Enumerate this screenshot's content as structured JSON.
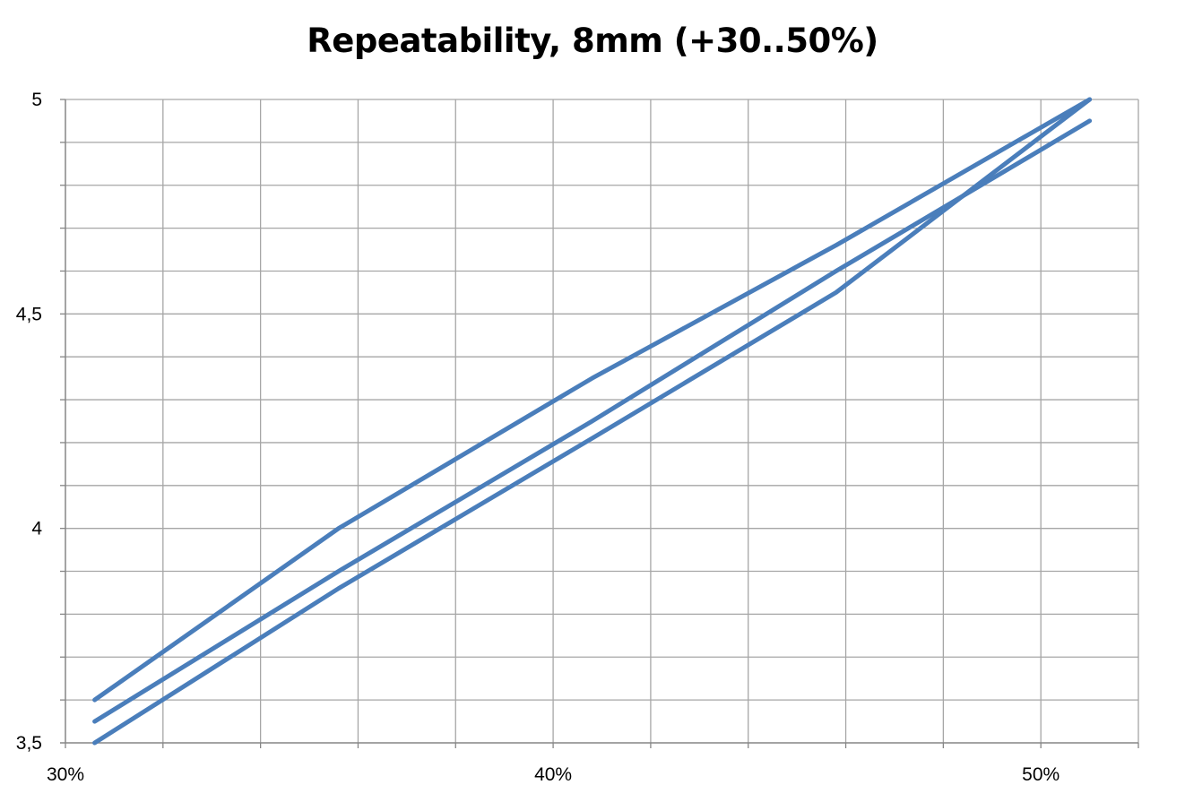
{
  "chart_data": {
    "type": "line",
    "title": "Repeatability, 8mm (+30..50%)",
    "xlabel": "",
    "ylabel": "",
    "xlim": [
      30,
      52
    ],
    "ylim": [
      3.5,
      5
    ],
    "x_ticks": [
      30,
      40,
      50
    ],
    "x_tick_labels": [
      "30%",
      "40%",
      "50%"
    ],
    "x_minor_step": 2,
    "y_ticks": [
      3.5,
      4,
      4.5,
      5
    ],
    "y_tick_labels": [
      "3,5",
      "4",
      "4,5",
      "5"
    ],
    "y_minor_step": 0.1,
    "grid": true,
    "line_color": "#4a7ebb",
    "series": [
      {
        "x": [
          30.6,
          35.6,
          40.8,
          45.8,
          51.0
        ],
        "y": [
          3.5,
          3.86,
          4.21,
          4.55,
          5.0
        ]
      },
      {
        "x": [
          51.0,
          45.8,
          40.8,
          35.6,
          30.6
        ],
        "y": [
          5.0,
          4.66,
          4.35,
          4.0,
          3.6
        ]
      },
      {
        "x": [
          30.6,
          35.6,
          40.8,
          45.8,
          51.0
        ],
        "y": [
          3.55,
          3.9,
          4.25,
          4.6,
          4.95
        ]
      }
    ]
  }
}
